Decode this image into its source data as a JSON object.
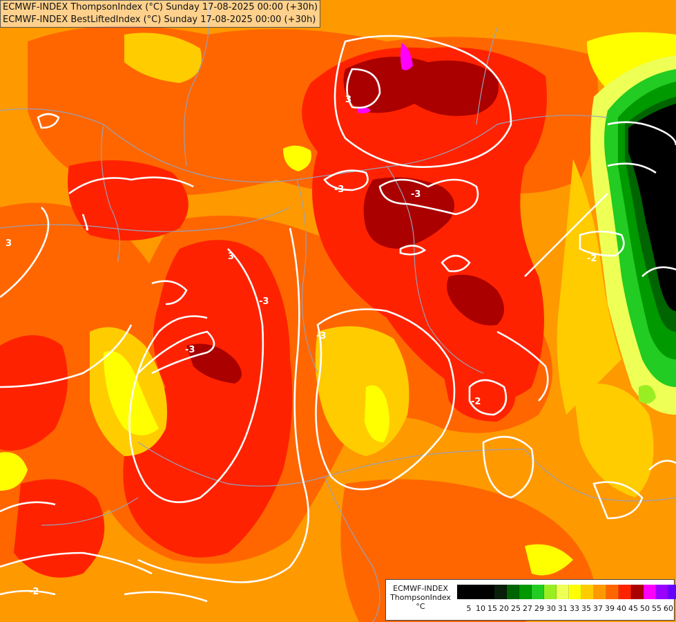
{
  "header": {
    "line1": "ECMWF-INDEX ThompsonIndex (°C) Sunday 17-08-2025 00:00 (+30h)",
    "line2": "ECMWF-INDEX BestLiftedIndex (°C) Sunday 17-08-2025 00:00 (+30h)"
  },
  "legend": {
    "title": "ECMWF-INDEX",
    "field": "ThompsonIndex",
    "unit": "°C",
    "ticks": [
      "5",
      "10",
      "15",
      "20",
      "25",
      "27",
      "29",
      "30",
      "31",
      "33",
      "35",
      "37",
      "39",
      "40",
      "45",
      "50",
      "55",
      "60"
    ],
    "colors": [
      "#000000",
      "#000000",
      "#000000",
      "#0a1f0a",
      "#006400",
      "#009900",
      "#22cc22",
      "#99ee22",
      "#eeff55",
      "#ffff00",
      "#ffcc00",
      "#ff9900",
      "#ff6600",
      "#ff2200",
      "#aa0000",
      "#ff00ff",
      "#9900ff",
      "#6600ff",
      "#0000ff"
    ]
  },
  "contour_labels": [
    "3",
    "3",
    "-3",
    "-3",
    "3",
    "-3",
    "-3",
    "-2",
    "-2",
    "-2",
    "-3"
  ],
  "colors": {
    "t31": "#ffff00",
    "t33": "#ffcc00",
    "t35": "#ff9900",
    "t37": "#ff6600",
    "t39": "#ff2200",
    "t40": "#aa0000",
    "t45": "#ff00ff",
    "green_dark": "#006400",
    "green_mid": "#009900",
    "green_light": "#22cc22",
    "contour": "#ffffff",
    "border": "#9aa0b5"
  }
}
